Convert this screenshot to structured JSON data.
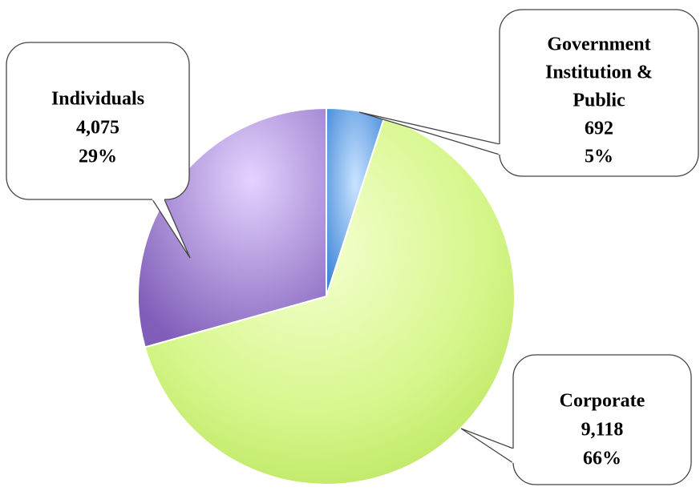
{
  "chart_data": {
    "type": "pie",
    "title": "",
    "legend": "none",
    "slices": [
      {
        "label_lines": [
          "Government",
          "Institution &",
          "Public"
        ],
        "value": 692,
        "value_label": "692",
        "percent_label": "5%",
        "color": "#6fa8e8"
      },
      {
        "label_lines": [
          "Corporate"
        ],
        "value": 9118,
        "value_label": "9,118",
        "percent_label": "66%",
        "color": "#d4f58e"
      },
      {
        "label_lines": [
          "Individuals"
        ],
        "value": 4075,
        "value_label": "4,075",
        "percent_label": "29%",
        "color": "#a98bd6"
      }
    ]
  }
}
